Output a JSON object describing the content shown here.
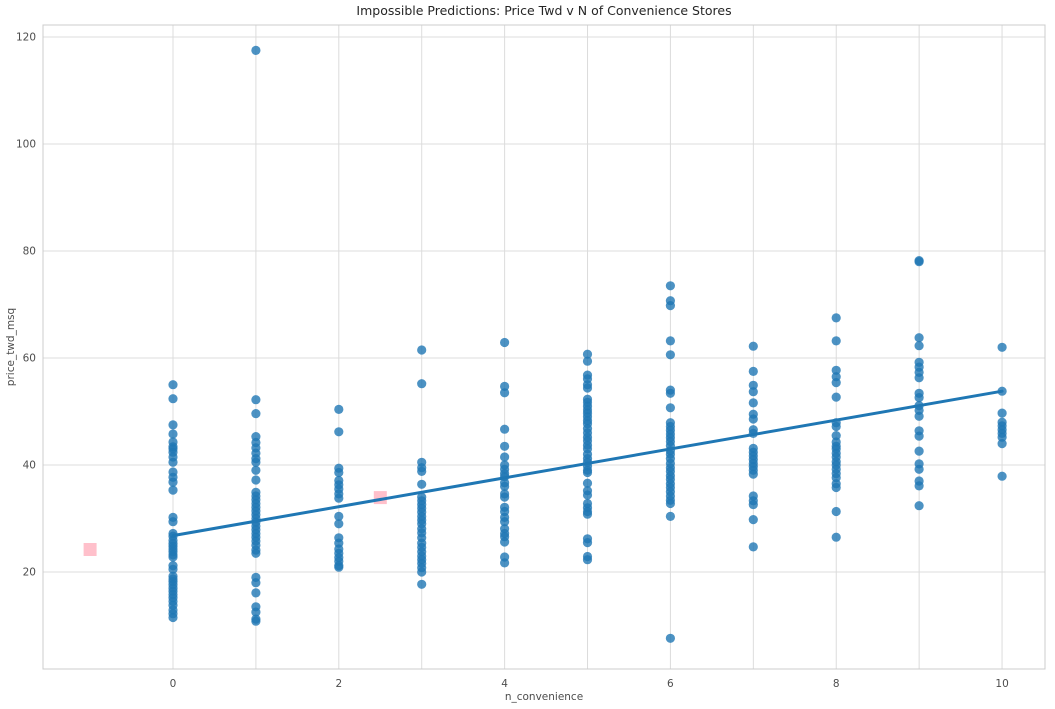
{
  "chart_data": {
    "type": "scatter",
    "title": "Impossible Predictions: Price Twd v N of Convenience Stores",
    "xlabel": "n_convenience",
    "ylabel": "price_twd_msq",
    "xlim": [
      -1.568,
      10.518
    ],
    "ylim": [
      1.87,
      122.24
    ],
    "x_tick_labels": [
      0,
      2,
      4,
      6,
      8,
      10
    ],
    "x_gridlines": [
      0,
      1,
      2,
      3,
      4,
      5,
      6,
      7,
      8,
      9,
      10
    ],
    "y_tick_labels": [
      20,
      40,
      60,
      80,
      100,
      120
    ],
    "grid": true,
    "legend": "none",
    "colors": {
      "scatter": "#1f77b4",
      "regression_line": "#1f77b4",
      "prediction_marker": "#ffc0cb",
      "gridline": "#dcdcdc",
      "spine": "#cccccc",
      "tick_text": "#4d4d4d",
      "title_text": "#262626"
    },
    "series": [
      {
        "name": "observations",
        "mark": "circle",
        "color": "#1f77b4",
        "opacity": 0.8,
        "columns": [
          {
            "x": 0,
            "ys": [
              55.0,
              52.4,
              47.5,
              45.8,
              44.3,
              43.4,
              43.0,
              42.4,
              41.5,
              40.5,
              38.7,
              37.7,
              36.8,
              35.3,
              30.2,
              29.4,
              27.2,
              26.7,
              25.9,
              25.3,
              24.8,
              24.3,
              23.8,
              23.2,
              22.8,
              21.2,
              20.5,
              19.2,
              18.7,
              18.2,
              17.6,
              17.0,
              16.4,
              15.8,
              15.2,
              14.5,
              13.8,
              12.9,
              12.2,
              11.5
            ]
          },
          {
            "x": 1,
            "ys": [
              117.5,
              52.2,
              49.6,
              45.3,
              44.2,
              43.2,
              42.2,
              41.2,
              40.5,
              39.0,
              37.2,
              34.9,
              34.2,
              33.5,
              32.8,
              32.1,
              31.4,
              30.7,
              30.0,
              29.3,
              28.6,
              27.9,
              27.2,
              26.5,
              25.8,
              25.0,
              24.1,
              23.5,
              19.0,
              18.0,
              16.1,
              13.5,
              12.5,
              11.2,
              10.8
            ]
          },
          {
            "x": 2,
            "ys": [
              50.4,
              46.2,
              39.4,
              38.6,
              37.1,
              36.3,
              35.5,
              34.6,
              33.8,
              30.4,
              29.0,
              26.4,
              25.4,
              24.3,
              23.5,
              22.7,
              22.0,
              21.2,
              20.9
            ]
          },
          {
            "x": 3,
            "ys": [
              61.5,
              55.2,
              40.5,
              39.5,
              38.8,
              36.4,
              34.0,
              33.3,
              32.6,
              31.9,
              31.2,
              30.4,
              29.7,
              29.0,
              28.1,
              27.3,
              26.4,
              25.4,
              24.6,
              23.8,
              23.0,
              22.3,
              21.6,
              20.8,
              20.0,
              17.7
            ]
          },
          {
            "x": 4,
            "ys": [
              62.9,
              54.7,
              53.5,
              46.7,
              43.5,
              41.5,
              40.0,
              39.2,
              38.4,
              37.8,
              36.7,
              36.0,
              34.6,
              34.0,
              32.1,
              31.3,
              30.2,
              29.4,
              28.1,
              27.2,
              26.6,
              25.6,
              22.8,
              21.7
            ]
          },
          {
            "x": 5,
            "ys": [
              60.7,
              59.4,
              56.8,
              56.1,
              55.0,
              54.4,
              52.3,
              51.7,
              51.0,
              50.3,
              49.7,
              49.0,
              48.3,
              47.7,
              46.8,
              46.0,
              45.2,
              44.5,
              43.7,
              43.0,
              42.0,
              41.2,
              40.5,
              39.8,
              39.0,
              38.6,
              36.6,
              35.2,
              34.4,
              32.8,
              32.0,
              31.3,
              30.8,
              26.2,
              25.5,
              22.9,
              22.3
            ]
          },
          {
            "x": 6,
            "ys": [
              73.5,
              70.7,
              69.8,
              63.2,
              60.6,
              54.0,
              53.4,
              50.7,
              47.9,
              47.2,
              46.5,
              45.8,
              45.1,
              44.4,
              43.6,
              42.7,
              42.0,
              41.2,
              40.3,
              39.5,
              38.8,
              38.0,
              37.3,
              36.5,
              35.8,
              35.0,
              34.2,
              33.4,
              32.8,
              30.4,
              7.6
            ]
          },
          {
            "x": 7,
            "ys": [
              62.2,
              57.5,
              54.9,
              53.7,
              51.6,
              49.5,
              48.6,
              46.6,
              45.9,
              43.1,
              42.4,
              41.7,
              41.0,
              40.3,
              39.7,
              39.0,
              38.3,
              34.2,
              33.3,
              32.6,
              29.8,
              24.7
            ]
          },
          {
            "x": 8,
            "ys": [
              67.5,
              63.2,
              57.7,
              56.5,
              55.4,
              52.7,
              47.9,
              47.2,
              45.5,
              44.3,
              43.5,
              43.0,
              42.2,
              41.5,
              40.6,
              40.0,
              39.2,
              38.4,
              37.6,
              36.5,
              35.8,
              31.3,
              26.5
            ]
          },
          {
            "x": 9,
            "ys": [
              78.2,
              78.0,
              63.8,
              62.3,
              59.2,
              58.3,
              57.3,
              56.3,
              53.4,
              52.6,
              51.1,
              50.2,
              49.1,
              46.4,
              45.4,
              42.6,
              40.2,
              39.2,
              37.0,
              36.1,
              32.4
            ]
          },
          {
            "x": 10,
            "ys": [
              62.0,
              53.8,
              49.7,
              48.0,
              47.3,
              46.6,
              45.9,
              45.2,
              44.0,
              37.9
            ]
          }
        ]
      },
      {
        "name": "regression-line",
        "mark": "line",
        "color": "#1f77b4",
        "width": 3,
        "points": [
          [
            0,
            26.8
          ],
          [
            10,
            53.8
          ]
        ]
      },
      {
        "name": "impossible-predictions",
        "mark": "square",
        "color": "#ffc0cb",
        "size": 13,
        "points": [
          [
            -1,
            24.2
          ],
          [
            2.5,
            33.9
          ]
        ]
      }
    ]
  }
}
